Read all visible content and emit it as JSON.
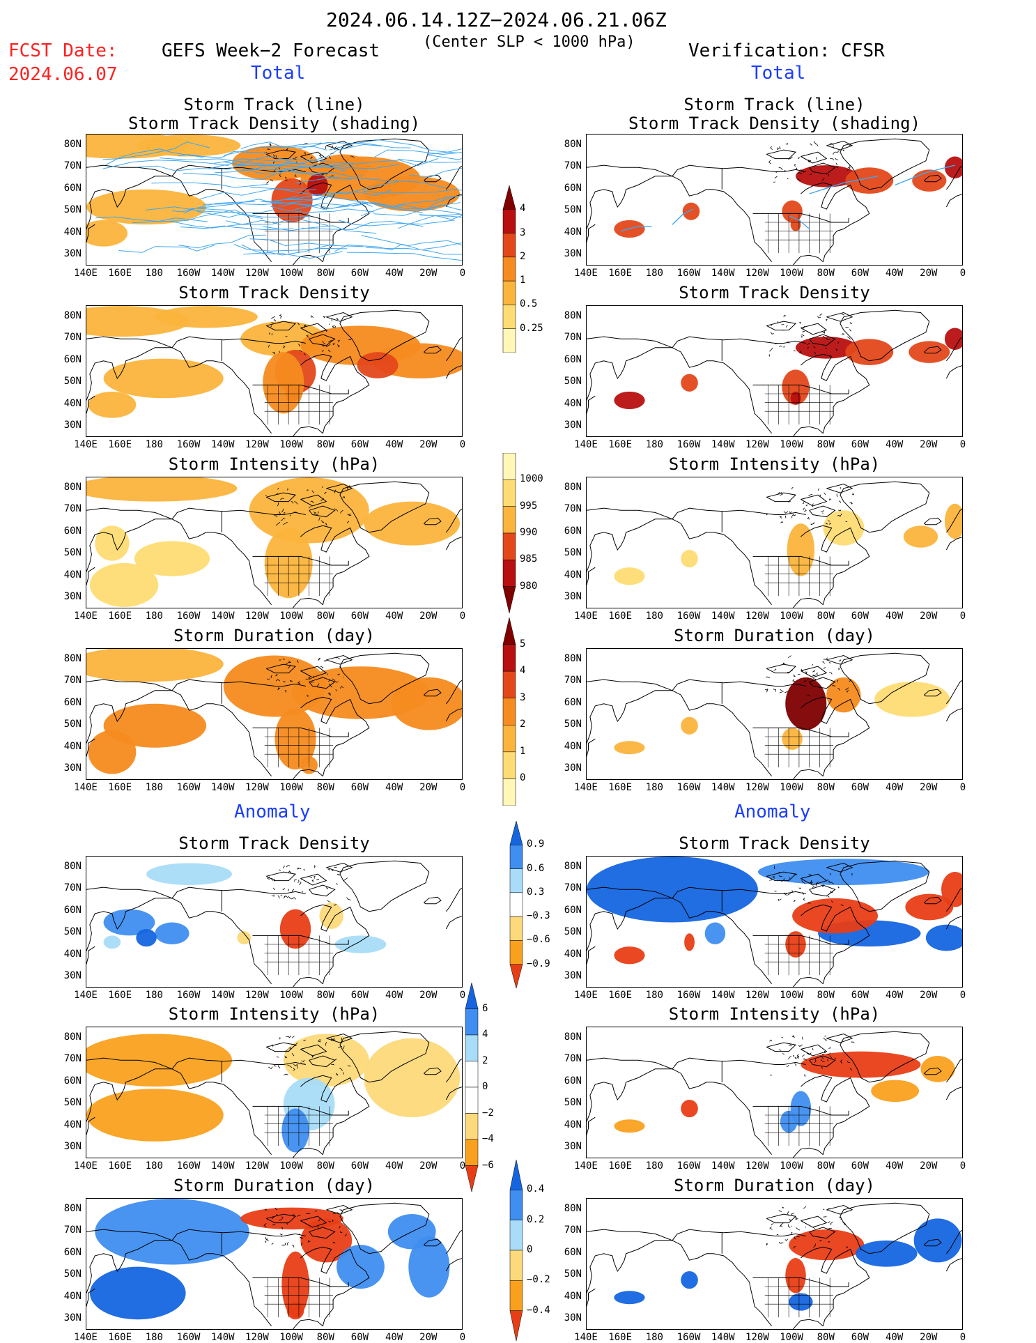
{
  "header": {
    "date_range": "2024.06.14.12Z−2024.06.21.06Z",
    "subtitle": "(Center SLP < 1000 hPa)",
    "fcst_date_label": "FCST Date:",
    "fcst_date_value": "2024.06.07",
    "left_title": "GEFS Week−2 Forecast",
    "right_title": "Verification: CFSR",
    "total_label": "Total",
    "anomaly_label": "Anomaly"
  },
  "panel_titles": {
    "track_line": "Storm Track (line)",
    "track_shading": "Storm Track Density (shading)",
    "density": "Storm Track Density",
    "intensity": "Storm Intensity (hPa)",
    "duration": "Storm Duration (day)"
  },
  "axes": {
    "lat_labels": [
      "80N",
      "70N",
      "60N",
      "50N",
      "40N",
      "30N"
    ],
    "lon_labels": [
      "140E",
      "160E",
      "180",
      "160W",
      "140W",
      "120W",
      "100W",
      "80W",
      "60W",
      "40W",
      "20W",
      "0"
    ]
  },
  "colorbars": {
    "density_total": [
      "4",
      "3",
      "2",
      "1",
      "0.5",
      "0.25"
    ],
    "intensity_total": [
      "1000",
      "995",
      "990",
      "985",
      "980"
    ],
    "duration_total": [
      "5",
      "4",
      "3",
      "2",
      "1",
      "0"
    ],
    "density_anomaly": [
      "0.9",
      "0.6",
      "0.3",
      "−0.3",
      "−0.6",
      "−0.9"
    ],
    "intensity_anomaly": [
      "6",
      "4",
      "2",
      "0",
      "−2",
      "−4",
      "−6"
    ],
    "duration_anomaly": [
      "0.4",
      "0.2",
      "0",
      "−0.2",
      "−0.4"
    ]
  },
  "colors": {
    "total_scale": [
      "#fff7b8",
      "#fedc74",
      "#fbb43c",
      "#f68b1f",
      "#e4481a",
      "#b81010",
      "#800000"
    ],
    "anomaly_scale": [
      "#1565e0",
      "#3f8ef0",
      "#a8dcf8",
      "#ffffff",
      "#fcd97a",
      "#f9a11f",
      "#e83e16"
    ],
    "track_line": "#3fa6f0",
    "header_red": "#ff2020",
    "header_blue": "#1a3cff"
  }
}
